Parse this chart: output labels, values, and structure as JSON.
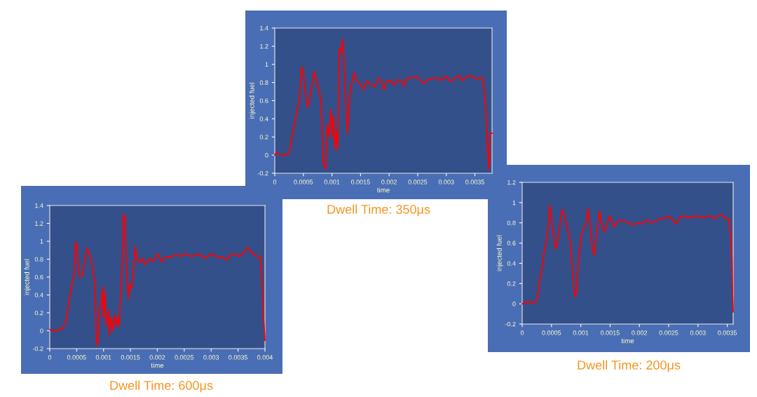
{
  "chart_data": [
    {
      "type": "line",
      "title": "Dwell Time: 350μs",
      "xlabel": "time",
      "ylabel": "injected fuel",
      "xlim": [
        0,
        0.0038
      ],
      "ylim": [
        -0.2,
        1.4
      ],
      "xticks": [
        0,
        0.0005,
        0.001,
        0.0015,
        0.002,
        0.0025,
        0.003,
        0.0035
      ],
      "yticks": [
        -0.2,
        0,
        0.2,
        0.4,
        0.6,
        0.8,
        1,
        1.2,
        1.4
      ],
      "grid": false,
      "series": [
        {
          "color": "#ff0000",
          "x": [
            0,
            2e-05,
            0.0001,
            0.0002,
            0.00026,
            0.0003,
            0.00037,
            0.00043,
            0.00047,
            0.0005,
            0.00053,
            0.00057,
            0.00061,
            0.00069,
            0.00075,
            0.00081,
            0.00085,
            0.00089,
            0.00092,
            0.00095,
            0.00098,
            0.00101,
            0.00103,
            0.00105,
            0.00108,
            0.0011,
            0.00113,
            0.00116,
            0.00118,
            0.0012,
            0.00124,
            0.00127,
            0.0013,
            0.00133,
            0.00136,
            0.00139,
            0.00143,
            0.00149,
            0.00155,
            0.00161,
            0.00169,
            0.00175,
            0.00182,
            0.00188,
            0.00191,
            0.00196,
            0.00204,
            0.00208,
            0.00216,
            0.00222,
            0.00226,
            0.00232,
            0.00238,
            0.00248,
            0.00255,
            0.00261,
            0.00267,
            0.00279,
            0.00287,
            0.00291,
            0.003,
            0.00308,
            0.00316,
            0.00322,
            0.00328,
            0.00336,
            0.00344,
            0.00353,
            0.00363,
            0.00366,
            0.00369,
            0.00372,
            0.00375,
            0.00377,
            0.0038
          ],
          "values": [
            0,
            0.02,
            0.01,
            0,
            0.04,
            0.2,
            0.43,
            0.61,
            0.97,
            0.92,
            0.72,
            0.53,
            0.61,
            0.92,
            0.77,
            0.61,
            -0.09,
            -0.15,
            0.33,
            0.21,
            0.5,
            0.2,
            0.43,
            0.07,
            0.26,
            0.06,
            1.17,
            1.13,
            1.28,
            1.2,
            0.61,
            0.24,
            0.56,
            0.74,
            0.82,
            0.91,
            0.82,
            0.79,
            0.72,
            0.82,
            0.77,
            0.75,
            0.85,
            0.79,
            0.72,
            0.82,
            0.82,
            0.77,
            0.83,
            0.82,
            0.76,
            0.85,
            0.85,
            0.87,
            0.82,
            0.79,
            0.83,
            0.85,
            0.85,
            0.82,
            0.87,
            0.81,
            0.85,
            0.88,
            0.82,
            0.87,
            0.87,
            0.84,
            0.86,
            0.74,
            0.51,
            0.1,
            -0.16,
            0.25,
            0.24
          ]
        }
      ]
    },
    {
      "type": "line",
      "title": "Dwell Time: 600μs",
      "xlabel": "time",
      "ylabel": "injected fuel",
      "xlim": [
        0,
        0.004
      ],
      "ylim": [
        -0.2,
        1.4
      ],
      "xticks": [
        0,
        0.0005,
        0.001,
        0.0015,
        0.002,
        0.0025,
        0.003,
        0.0035,
        0.004
      ],
      "yticks": [
        -0.2,
        0,
        0.2,
        0.4,
        0.6,
        0.8,
        1,
        1.2,
        1.4
      ],
      "grid": false,
      "series": [
        {
          "color": "#ff0000",
          "x": [
            0,
            0.00012,
            0.00023,
            0.0003,
            0.00034,
            0.0004,
            0.00045,
            0.00048,
            0.00051,
            0.00053,
            0.00056,
            0.00061,
            0.00069,
            0.00075,
            0.00079,
            0.00084,
            0.00087,
            0.00089,
            0.00093,
            0.00096,
            0.00098,
            0.001,
            0.00102,
            0.00105,
            0.00109,
            0.00111,
            0.00114,
            0.00117,
            0.00121,
            0.00124,
            0.00127,
            0.00129,
            0.00132,
            0.00135,
            0.00137,
            0.0014,
            0.00142,
            0.00146,
            0.00149,
            0.00152,
            0.00156,
            0.00159,
            0.00162,
            0.00166,
            0.00173,
            0.00177,
            0.00186,
            0.00192,
            0.00201,
            0.00208,
            0.00216,
            0.00225,
            0.00234,
            0.00243,
            0.00251,
            0.00264,
            0.00277,
            0.00288,
            0.00301,
            0.00312,
            0.00321,
            0.0033,
            0.00336,
            0.00345,
            0.00351,
            0.00358,
            0.00368,
            0.00377,
            0.00386,
            0.00391,
            0.00394,
            0.00397,
            0.004
          ],
          "values": [
            0.01,
            0,
            0.02,
            0.1,
            0.26,
            0.49,
            0.62,
            0.99,
            0.96,
            0.73,
            0.6,
            0.62,
            0.92,
            0.85,
            0.73,
            0.52,
            -0.13,
            -0.16,
            0.26,
            0.31,
            0.49,
            0.15,
            0.44,
            0.05,
            0.23,
            -0.05,
            0.15,
            0,
            0.18,
            0.05,
            0.15,
            0.05,
            0.42,
            0.83,
            1.3,
            1.27,
            0.83,
            0.36,
            0.52,
            0.47,
            0.7,
            0.94,
            0.81,
            0.76,
            0.81,
            0.74,
            0.81,
            0.77,
            0.86,
            0.77,
            0.83,
            0.82,
            0.85,
            0.83,
            0.86,
            0.83,
            0.86,
            0.81,
            0.86,
            0.82,
            0.82,
            0.79,
            0.85,
            0.86,
            0.83,
            0.86,
            0.93,
            0.86,
            0.83,
            0.83,
            0.62,
            0.18,
            -0.11
          ]
        }
      ]
    },
    {
      "type": "line",
      "title": "Dwell Time: 200μs",
      "xlabel": "time",
      "ylabel": "injected fuel",
      "xlim": [
        0,
        0.0036
      ],
      "ylim": [
        -0.2,
        1.2
      ],
      "xticks": [
        0,
        0.0005,
        0.001,
        0.0015,
        0.002,
        0.0025,
        0.003,
        0.0035
      ],
      "yticks": [
        -0.2,
        0,
        0.2,
        0.4,
        0.6,
        0.8,
        1,
        1.2
      ],
      "grid": false,
      "series": [
        {
          "color": "#ff0000",
          "x": [
            0,
            9e-05,
            0.00019,
            0.00023,
            0.00026,
            0.00029,
            0.00034,
            0.00037,
            0.00043,
            0.00047,
            0.0005,
            0.00053,
            0.00057,
            0.00061,
            0.00068,
            0.00072,
            0.00077,
            0.00082,
            0.00086,
            0.0009,
            0.00093,
            0.00096,
            0.00101,
            0.00106,
            0.00109,
            0.00112,
            0.00116,
            0.0012,
            0.00123,
            0.00127,
            0.00132,
            0.00136,
            0.0014,
            0.00145,
            0.00149,
            0.00153,
            0.00157,
            0.00165,
            0.00173,
            0.00181,
            0.00189,
            0.00197,
            0.00205,
            0.00212,
            0.0022,
            0.00228,
            0.00236,
            0.00244,
            0.00252,
            0.00258,
            0.00264,
            0.00268,
            0.00276,
            0.00284,
            0.00292,
            0.003,
            0.00308,
            0.0032,
            0.00328,
            0.00334,
            0.0034,
            0.00346,
            0.00352,
            0.00355,
            0.00358,
            0.00359,
            0.0036
          ],
          "values": [
            0,
            0.02,
            0.01,
            0.02,
            0.05,
            0.21,
            0.35,
            0.49,
            0.68,
            0.97,
            0.86,
            0.7,
            0.54,
            0.63,
            0.93,
            0.88,
            0.75,
            0.61,
            0.31,
            0.07,
            0.12,
            0.44,
            0.68,
            0.77,
            0.79,
            0.94,
            0.79,
            0.54,
            0.48,
            0.68,
            0.92,
            0.79,
            0.71,
            0.78,
            0.87,
            0.82,
            0.76,
            0.83,
            0.82,
            0.8,
            0.78,
            0.8,
            0.79,
            0.83,
            0.8,
            0.82,
            0.84,
            0.85,
            0.86,
            0.82,
            0.79,
            0.85,
            0.87,
            0.85,
            0.86,
            0.87,
            0.85,
            0.87,
            0.84,
            0.87,
            0.88,
            0.85,
            0.84,
            0.72,
            0.44,
            0.07,
            -0.08
          ]
        }
      ]
    }
  ]
}
